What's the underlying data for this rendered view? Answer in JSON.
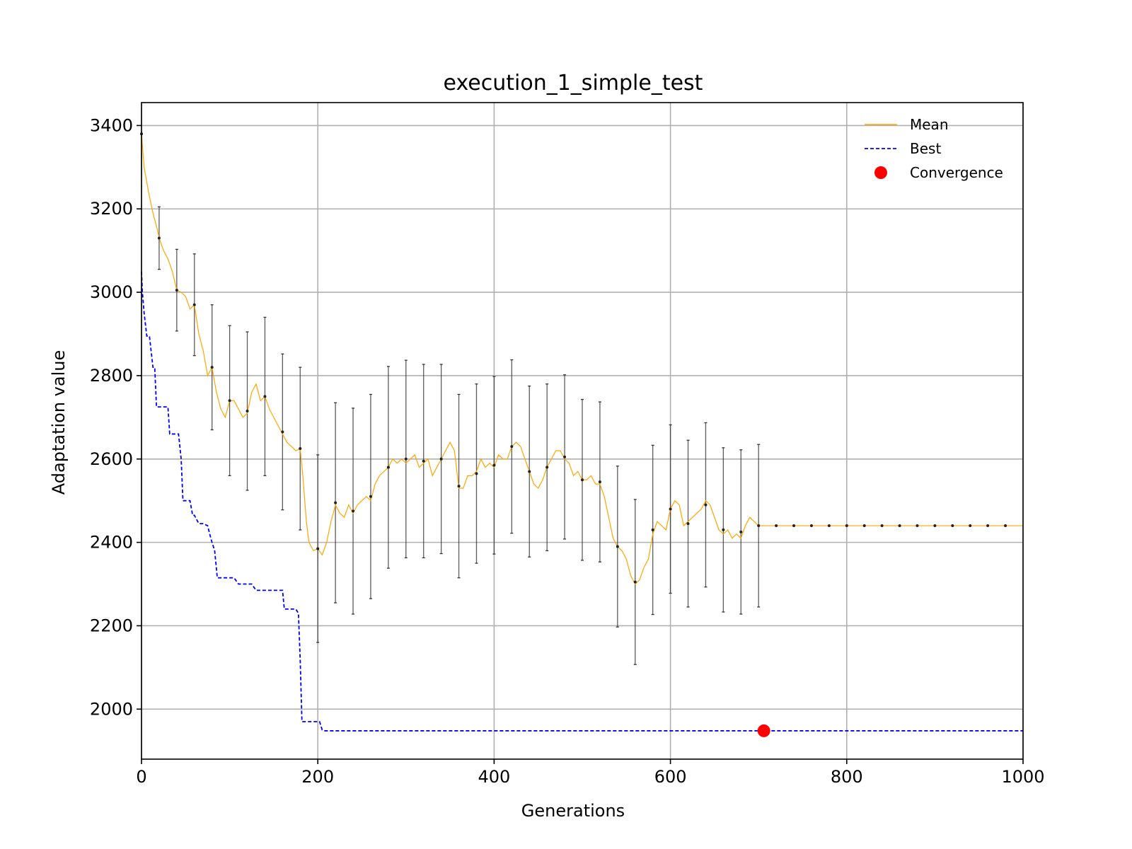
{
  "chart_data": {
    "type": "line",
    "title": "execution_1_simple_test",
    "xlabel": "Generations",
    "ylabel": "Adaptation value",
    "xlim": [
      0,
      1000
    ],
    "ylim": [
      1880,
      3455
    ],
    "grid": true,
    "legend_position": "top-right",
    "xticks": [
      0,
      200,
      400,
      600,
      800,
      1000
    ],
    "xtick_labels": [
      "0",
      "200",
      "400",
      "600",
      "800",
      "1000"
    ],
    "yticks": [
      2000,
      2200,
      2400,
      2600,
      2800,
      3000,
      3200,
      3400
    ],
    "ytick_labels": [
      "2000",
      "2200",
      "2400",
      "2600",
      "2800",
      "3000",
      "3200",
      "3400"
    ],
    "legend": [
      {
        "label": "Mean",
        "marker": "line",
        "color": "#ffa500"
      },
      {
        "label": "Best",
        "marker": "dashed-line",
        "color": "#0000ff"
      },
      {
        "label": "Convergence",
        "marker": "dot",
        "color": "#ff0000"
      }
    ],
    "series": [
      {
        "name": "Mean",
        "style": "solid",
        "color": "#ffa500",
        "x": [
          0,
          3,
          8,
          13,
          18,
          20,
          25,
          30,
          35,
          40,
          45,
          50,
          55,
          60,
          65,
          70,
          75,
          80,
          85,
          90,
          95,
          100,
          105,
          110,
          115,
          120,
          125,
          130,
          135,
          140,
          145,
          150,
          155,
          160,
          165,
          170,
          175,
          180,
          183,
          187,
          190,
          195,
          200,
          205,
          210,
          215,
          220,
          225,
          230,
          235,
          240,
          245,
          250,
          255,
          260,
          265,
          270,
          275,
          280,
          285,
          290,
          295,
          300,
          305,
          310,
          315,
          320,
          325,
          330,
          335,
          340,
          345,
          350,
          355,
          360,
          365,
          370,
          375,
          380,
          385,
          390,
          395,
          400,
          405,
          410,
          415,
          420,
          425,
          430,
          435,
          440,
          445,
          450,
          455,
          460,
          465,
          470,
          475,
          480,
          485,
          490,
          495,
          500,
          505,
          510,
          515,
          520,
          525,
          530,
          535,
          540,
          545,
          550,
          555,
          560,
          565,
          570,
          575,
          580,
          585,
          590,
          595,
          600,
          605,
          610,
          615,
          620,
          625,
          630,
          635,
          640,
          645,
          650,
          655,
          660,
          665,
          670,
          675,
          680,
          685,
          690,
          695,
          700,
          705,
          710,
          720,
          1000
        ],
        "y": [
          3380,
          3300,
          3240,
          3190,
          3150,
          3130,
          3100,
          3080,
          3050,
          3005,
          3000,
          2990,
          2960,
          2970,
          2900,
          2860,
          2800,
          2820,
          2760,
          2720,
          2700,
          2740,
          2740,
          2720,
          2700,
          2710,
          2760,
          2780,
          2740,
          2750,
          2720,
          2700,
          2680,
          2660,
          2640,
          2630,
          2620,
          2625,
          2560,
          2450,
          2400,
          2380,
          2385,
          2370,
          2400,
          2450,
          2490,
          2470,
          2460,
          2490,
          2470,
          2490,
          2500,
          2510,
          2500,
          2540,
          2560,
          2570,
          2580,
          2600,
          2590,
          2600,
          2590,
          2600,
          2610,
          2580,
          2590,
          2600,
          2560,
          2580,
          2600,
          2620,
          2640,
          2620,
          2530,
          2530,
          2560,
          2560,
          2570,
          2600,
          2580,
          2590,
          2580,
          2610,
          2600,
          2600,
          2630,
          2640,
          2630,
          2600,
          2570,
          2540,
          2530,
          2550,
          2580,
          2600,
          2620,
          2620,
          2600,
          2590,
          2560,
          2570,
          2550,
          2550,
          2560,
          2540,
          2540,
          2510,
          2460,
          2410,
          2390,
          2380,
          2360,
          2320,
          2300,
          2310,
          2340,
          2360,
          2420,
          2450,
          2440,
          2430,
          2480,
          2500,
          2490,
          2440,
          2450,
          2460,
          2470,
          2480,
          2500,
          2490,
          2460,
          2430,
          2420,
          2430,
          2410,
          2420,
          2410,
          2440,
          2460,
          2450,
          2440,
          2440,
          2440,
          2440,
          2440
        ]
      },
      {
        "name": "Best",
        "style": "dashed",
        "color": "#0000ff",
        "x": [
          0,
          1,
          3,
          6,
          9,
          13,
          15,
          17,
          20,
          25,
          30,
          32,
          35,
          40,
          42,
          45,
          47,
          50,
          55,
          58,
          60,
          65,
          68,
          70,
          75,
          78,
          80,
          83,
          86,
          90,
          95,
          100,
          105,
          110,
          115,
          120,
          125,
          130,
          135,
          140,
          145,
          150,
          155,
          160,
          162,
          165,
          170,
          175,
          178,
          180,
          182,
          185,
          190,
          195,
          200,
          202,
          205,
          207,
          210,
          1000
        ],
        "y": [
          3050,
          3000,
          2950,
          2895,
          2895,
          2820,
          2820,
          2725,
          2725,
          2725,
          2725,
          2660,
          2660,
          2660,
          2660,
          2600,
          2500,
          2500,
          2500,
          2465,
          2465,
          2445,
          2445,
          2445,
          2440,
          2415,
          2400,
          2380,
          2315,
          2315,
          2315,
          2315,
          2315,
          2300,
          2300,
          2300,
          2300,
          2285,
          2285,
          2285,
          2285,
          2285,
          2285,
          2285,
          2240,
          2240,
          2240,
          2240,
          2230,
          2120,
          1970,
          1970,
          1970,
          1970,
          1970,
          1970,
          1950,
          1948,
          1948,
          1948
        ]
      }
    ],
    "error_bars": {
      "x": [
        0,
        20,
        40,
        60,
        80,
        100,
        120,
        140,
        160,
        180,
        200,
        220,
        240,
        260,
        280,
        300,
        320,
        340,
        360,
        380,
        400,
        420,
        440,
        460,
        480,
        500,
        520,
        540,
        560,
        580,
        600,
        620,
        640,
        660,
        680,
        700,
        720,
        740,
        760,
        780,
        800,
        820,
        840,
        860,
        880,
        900,
        920,
        940,
        960,
        980
      ],
      "y": [
        3380,
        3130,
        3005,
        2970,
        2820,
        2740,
        2715,
        2750,
        2665,
        2625,
        2385,
        2495,
        2475,
        2510,
        2580,
        2600,
        2595,
        2600,
        2535,
        2565,
        2585,
        2630,
        2570,
        2580,
        2605,
        2550,
        2545,
        2390,
        2305,
        2430,
        2480,
        2445,
        2490,
        2430,
        2425,
        2440,
        2440,
        2440,
        2440,
        2440,
        2440,
        2440,
        2440,
        2440,
        2440,
        2440,
        2440,
        2440,
        2440,
        2440
      ],
      "err": [
        0,
        75,
        98,
        122,
        150,
        180,
        190,
        190,
        187,
        195,
        225,
        240,
        247,
        245,
        242,
        237,
        232,
        227,
        220,
        215,
        213,
        208,
        205,
        200,
        197,
        193,
        192,
        193,
        198,
        203,
        202,
        200,
        197,
        197,
        197,
        195,
        0,
        0,
        0,
        0,
        0,
        0,
        0,
        0,
        0,
        0,
        0,
        0,
        0,
        0
      ],
      "color": "#333333"
    },
    "convergence": {
      "x": 706,
      "y": 1948,
      "color": "#ff0000"
    }
  }
}
